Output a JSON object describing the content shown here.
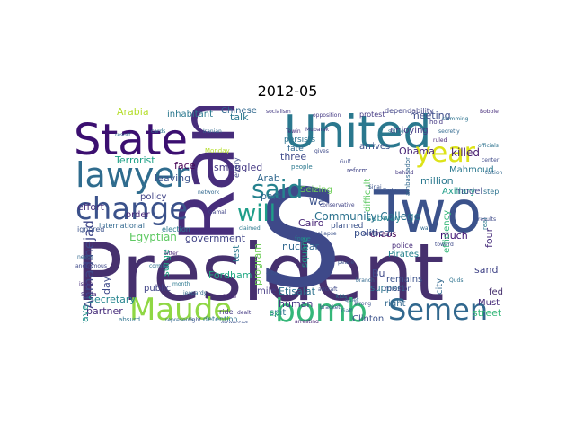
{
  "title": "2012-05",
  "colors": {
    "background": "#ffffff",
    "title": "#000000"
  },
  "words": [
    {
      "text": "President",
      "color": "#46306e"
    },
    {
      "text": "S",
      "color": "#3e4989"
    },
    {
      "text": "Two",
      "color": "#3b528b"
    },
    {
      "text": "Ran",
      "color": "#472d7b"
    },
    {
      "text": "United",
      "color": "#2a788e"
    },
    {
      "text": "State",
      "color": "#3b0f70"
    },
    {
      "text": "lawyer",
      "color": "#2f6c8e"
    },
    {
      "text": "change",
      "color": "#3b528b"
    },
    {
      "text": "bomb",
      "color": "#35b779"
    },
    {
      "text": "Maude",
      "color": "#8fd744"
    },
    {
      "text": "Semen",
      "color": "#31688e"
    },
    {
      "text": "year",
      "color": "#dde318"
    },
    {
      "text": "said",
      "color": "#26828e"
    },
    {
      "text": "will",
      "color": "#1f9e89"
    },
    {
      "text": "Ahmadinejad",
      "color": "#3f4788"
    },
    {
      "text": "Community College",
      "color": "#2c728e"
    },
    {
      "text": "Egyptian",
      "color": "#5ec962"
    },
    {
      "text": "government",
      "color": "#414487"
    },
    {
      "text": "smuggled",
      "color": "#443983"
    },
    {
      "text": "Terrorist",
      "color": "#1fa187"
    },
    {
      "text": "meeting",
      "color": "#3e4c8a"
    },
    {
      "text": "killed",
      "color": "#481f70"
    },
    {
      "text": "million",
      "color": "#2a788e"
    },
    {
      "text": "Obama",
      "color": "#482576"
    },
    {
      "text": "Etisalat",
      "color": "#2c718e"
    },
    {
      "text": "nuclear",
      "color": "#31688e"
    },
    {
      "text": "political",
      "color": "#3b528b"
    },
    {
      "text": "program",
      "color": "#6ece58"
    },
    {
      "text": "Fordham",
      "color": "#22a884"
    },
    {
      "text": "partner",
      "color": "#472d7b"
    },
    {
      "text": "Secretary",
      "color": "#25858e"
    },
    {
      "text": "Arabia",
      "color": "#b5de2b"
    },
    {
      "text": "talk",
      "color": "#2a788e"
    },
    {
      "text": "enjoying",
      "color": "#443983"
    },
    {
      "text": "Arab",
      "color": "#31688e"
    },
    {
      "text": "three",
      "color": "#3e4989"
    },
    {
      "text": "face",
      "color": "#440154"
    },
    {
      "text": "leaving",
      "color": "#3b528b"
    },
    {
      "text": "effort",
      "color": "#46327e"
    },
    {
      "text": "Mahmoud",
      "color": "#2a788e"
    },
    {
      "text": "Axillary",
      "color": "#1f9e89"
    },
    {
      "text": "much",
      "color": "#3b0f70"
    },
    {
      "text": "four",
      "color": "#472d7b"
    },
    {
      "text": "surge",
      "color": "#22a884"
    },
    {
      "text": "public",
      "color": "#414487"
    },
    {
      "text": "day",
      "color": "#3e4989"
    },
    {
      "text": "wave",
      "color": "#21918c"
    },
    {
      "text": "human",
      "color": "#443983"
    },
    {
      "text": "support",
      "color": "#2c728e"
    },
    {
      "text": "right",
      "color": "#31688e"
    },
    {
      "text": "Clinton",
      "color": "#3b528b"
    },
    {
      "text": "nationalism",
      "color": "#2a788e"
    },
    {
      "text": "street",
      "color": "#35b779"
    },
    {
      "text": "Must",
      "color": "#472d7b"
    },
    {
      "text": "fed",
      "color": "#46306e"
    },
    {
      "text": "sand",
      "color": "#414487"
    },
    {
      "text": "remains",
      "color": "#3b528b"
    },
    {
      "text": "city",
      "color": "#31688e"
    },
    {
      "text": "Bu",
      "color": "#3e4989"
    },
    {
      "text": "mile",
      "color": "#443983"
    },
    {
      "text": "spit",
      "color": "#2c728e"
    },
    {
      "text": "Pirates",
      "color": "#26828e"
    },
    {
      "text": "square",
      "color": "#1f9e89"
    },
    {
      "text": "Cairo",
      "color": "#482576"
    },
    {
      "text": "part",
      "color": "#31688e"
    },
    {
      "text": "wa",
      "color": "#3b528b"
    },
    {
      "text": "order",
      "color": "#482576"
    },
    {
      "text": "policy",
      "color": "#414487"
    },
    {
      "text": "inhabitant",
      "color": "#2a788e"
    },
    {
      "text": "Chinese",
      "color": "#31688e"
    },
    {
      "text": "persists",
      "color": "#2c728e"
    },
    {
      "text": "Seizing",
      "color": "#6ece58"
    },
    {
      "text": "arrives",
      "color": "#3b528b"
    },
    {
      "text": "chaos",
      "color": "#440154"
    },
    {
      "text": "subway",
      "color": "#26828e"
    },
    {
      "text": "model",
      "color": "#3e4989"
    },
    {
      "text": "difficult",
      "color": "#5ec962"
    },
    {
      "text": "dependability",
      "color": "#414487"
    },
    {
      "text": "protest",
      "color": "#443983"
    },
    {
      "text": "test",
      "color": "#2a788e"
    },
    {
      "text": "fate",
      "color": "#31688e"
    },
    {
      "text": "planned",
      "color": "#3b528b"
    },
    {
      "text": "police",
      "color": "#472d7b"
    },
    {
      "text": "mission",
      "color": "#3e4989"
    },
    {
      "text": "detention",
      "color": "#2c728e"
    },
    {
      "text": "international",
      "color": "#31688e"
    },
    {
      "text": "ignored",
      "color": "#3b528b"
    },
    {
      "text": "election",
      "color": "#2a788e"
    },
    {
      "text": "efficiency",
      "color": "#35b779"
    },
    {
      "text": "Syria",
      "color": "#472d7b"
    },
    {
      "text": "every",
      "color": "#3e4989"
    },
    {
      "text": "Monday",
      "color": "#b5de2b"
    },
    {
      "text": "ride",
      "color": "#443983"
    },
    {
      "text": "absurd",
      "color": "#2c728e"
    },
    {
      "text": "represents",
      "color": "#31688e"
    },
    {
      "text": "fight",
      "color": "#3b528b"
    },
    {
      "text": "arresting",
      "color": "#482576"
    },
    {
      "text": "people",
      "color": "#2a788e"
    },
    {
      "text": "force",
      "color": "#26828e"
    },
    {
      "text": "airline",
      "color": "#3e4989"
    },
    {
      "text": "reform",
      "color": "#414487"
    },
    {
      "text": "branch",
      "color": "#31688e"
    },
    {
      "text": "peace",
      "color": "#3b528b"
    },
    {
      "text": "hold",
      "color": "#443983"
    },
    {
      "text": "step",
      "color": "#2c728e"
    },
    {
      "text": "ambassador",
      "color": "#31688e"
    },
    {
      "text": "toward",
      "color": "#3e4989"
    },
    {
      "text": "single",
      "color": "#2a788e"
    },
    {
      "text": "jeopardy",
      "color": "#31688e"
    },
    {
      "text": "dismissed",
      "color": "#3b528b"
    },
    {
      "text": "Ex",
      "color": "#35b779"
    },
    {
      "text": "Tewin",
      "color": "#472d7b"
    },
    {
      "text": "gives",
      "color": "#3e4989"
    },
    {
      "text": "Quds",
      "color": "#2c728e"
    },
    {
      "text": "dealt",
      "color": "#443983"
    },
    {
      "text": "Galf",
      "color": "#31688e"
    },
    {
      "text": "Zade",
      "color": "#3b528b"
    },
    {
      "text": "bitter",
      "color": "#482576"
    },
    {
      "text": "claimed",
      "color": "#2a788e"
    },
    {
      "text": "network",
      "color": "#31688e"
    },
    {
      "text": "aircraft",
      "color": "#3e4989"
    },
    {
      "text": "slamming",
      "color": "#2c728e"
    },
    {
      "text": "socialism",
      "color": "#443983"
    },
    {
      "text": "collapse",
      "color": "#3b528b"
    },
    {
      "text": "Bobble",
      "color": "#472d7b"
    },
    {
      "text": "tuition",
      "color": "#31688e"
    },
    {
      "text": "real",
      "color": "#2a788e"
    },
    {
      "text": "results",
      "color": "#3e4989"
    },
    {
      "text": "Gamal",
      "color": "#414487"
    },
    {
      "text": "needs",
      "color": "#31688e"
    },
    {
      "text": "coming",
      "color": "#2c728e"
    },
    {
      "text": "bracket",
      "color": "#3b528b"
    },
    {
      "text": "opposition",
      "color": "#443983"
    },
    {
      "text": "resort",
      "color": "#31688e"
    },
    {
      "text": "anonymous",
      "color": "#3e4989"
    },
    {
      "text": "Duke",
      "color": "#482576"
    },
    {
      "text": "kids",
      "color": "#2a788e"
    },
    {
      "text": "quiet",
      "color": "#31688e"
    },
    {
      "text": "strong",
      "color": "#3b528b"
    },
    {
      "text": "behind",
      "color": "#443983"
    },
    {
      "text": "officials",
      "color": "#2c728e"
    },
    {
      "text": "center",
      "color": "#3e4989"
    },
    {
      "text": "secretly",
      "color": "#31688e"
    },
    {
      "text": "conservative",
      "color": "#414487"
    },
    {
      "text": "issue",
      "color": "#472d7b"
    },
    {
      "text": "month",
      "color": "#2a788e"
    },
    {
      "text": "elite",
      "color": "#3b528b"
    },
    {
      "text": "Iranian",
      "color": "#31688e"
    },
    {
      "text": "Gulf",
      "color": "#3e4989"
    },
    {
      "text": "Mubarak",
      "color": "#443983"
    },
    {
      "text": "war",
      "color": "#31688e"
    },
    {
      "text": "cards",
      "color": "#2c728e"
    },
    {
      "text": "Sinai",
      "color": "#3b528b"
    },
    {
      "text": "ruled",
      "color": "#482576"
    }
  ]
}
